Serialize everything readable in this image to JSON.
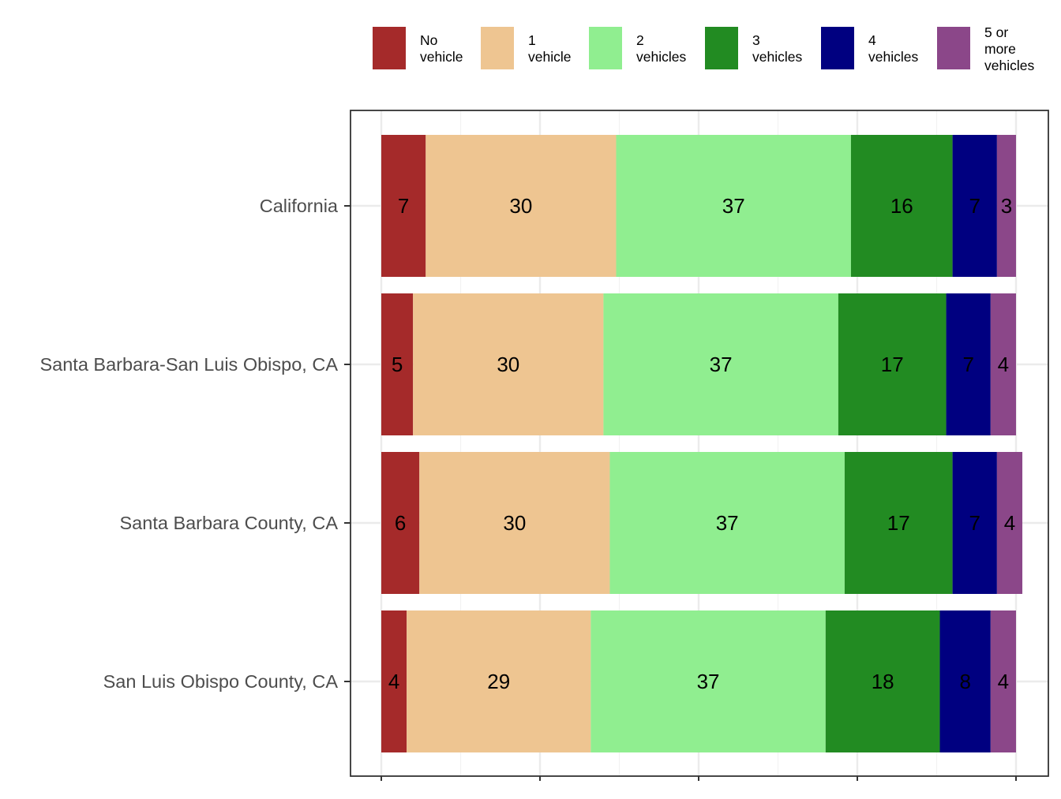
{
  "chart_data": {
    "type": "bar",
    "orientation": "horizontal",
    "stacked": true,
    "title": "",
    "xlabel": "",
    "ylabel": "",
    "xlim": [
      0,
      100
    ],
    "grid": true,
    "legend_position": "top",
    "categories": [
      "California",
      "Santa Barbara-San Luis Obispo, CA",
      "Santa Barbara County, CA",
      "San Luis Obispo County, CA"
    ],
    "series": [
      {
        "name": "No vehicle",
        "legend_lines": [
          "No",
          "vehicle"
        ],
        "color": "#A52A2A",
        "values": [
          7,
          5,
          6,
          4
        ]
      },
      {
        "name": "1 vehicle",
        "legend_lines": [
          "1",
          "vehicle"
        ],
        "color": "#EEC591",
        "values": [
          30,
          30,
          30,
          29
        ]
      },
      {
        "name": "2 vehicles",
        "legend_lines": [
          "2",
          "vehicles"
        ],
        "color": "#90EE90",
        "values": [
          37,
          37,
          37,
          37
        ]
      },
      {
        "name": "3 vehicles",
        "legend_lines": [
          "3",
          "vehicles"
        ],
        "color": "#228B22",
        "values": [
          16,
          17,
          17,
          18
        ]
      },
      {
        "name": "4 vehicles",
        "legend_lines": [
          "4",
          "vehicles"
        ],
        "color": "#000080",
        "values": [
          7,
          7,
          7,
          8
        ]
      },
      {
        "name": "5 or more vehicles",
        "legend_lines": [
          "5 or",
          "more",
          "vehicles"
        ],
        "color": "#8B4789",
        "values": [
          3,
          4,
          4,
          4
        ]
      }
    ]
  }
}
